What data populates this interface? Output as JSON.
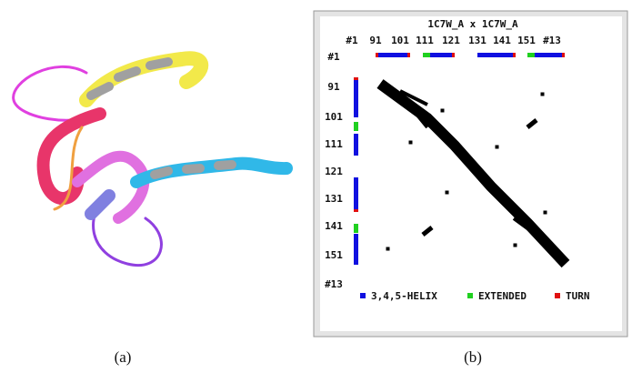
{
  "panel_b": {
    "title": "1C7W_A x 1C7W_A",
    "top_labels": [
      "#1",
      "91",
      "101",
      "111",
      "121",
      "131",
      "141",
      "151",
      "#13"
    ],
    "left_labels": [
      "#1",
      "91",
      "101",
      "111",
      "121",
      "131",
      "141",
      "151",
      "#13"
    ],
    "legend": [
      "3,4,5-HELIX",
      "EXTENDED",
      "TURN"
    ]
  },
  "captions": [
    "(a)",
    "(b)"
  ]
}
